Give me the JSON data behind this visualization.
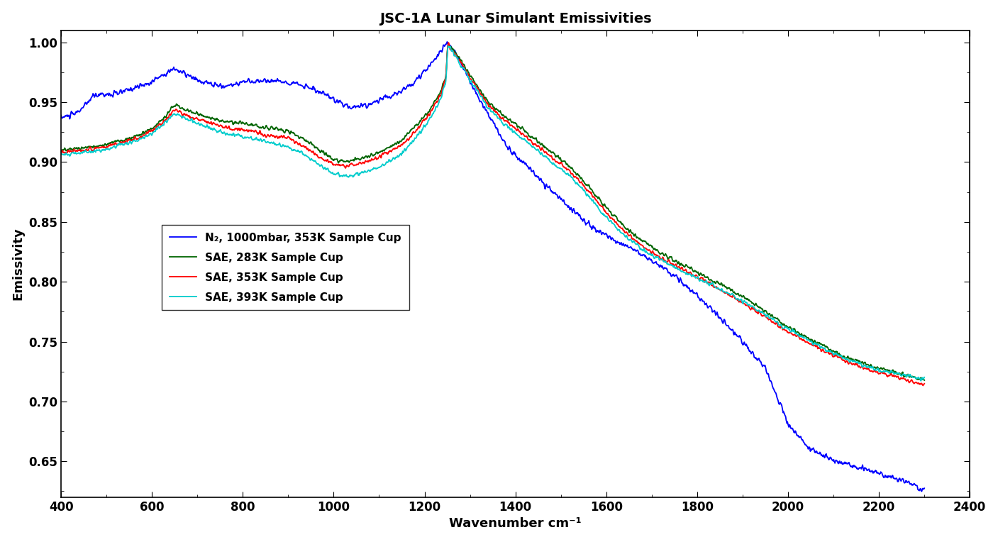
{
  "title": "JSC-1A Lunar Simulant Emissivities",
  "xlabel": "Wavenumber cm⁻¹",
  "ylabel": "Emissivity",
  "xlim": [
    400,
    2400
  ],
  "ylim": [
    0.62,
    1.01
  ],
  "yticks": [
    0.65,
    0.7,
    0.75,
    0.8,
    0.85,
    0.9,
    0.95,
    1.0
  ],
  "xticks": [
    400,
    600,
    800,
    1000,
    1200,
    1400,
    1600,
    1800,
    2000,
    2200,
    2400
  ],
  "legend_labels": [
    "N₂, 1000mbar, 353K Sample Cup",
    "SAE, 283K Sample Cup",
    "SAE, 353K Sample Cup",
    "SAE, 393K Sample Cup"
  ],
  "line_colors": [
    "#0000ff",
    "#006400",
    "#ff0000",
    "#00cccc"
  ],
  "background_color": "#ffffff",
  "title_fontsize": 14,
  "axis_label_fontsize": 13,
  "tick_fontsize": 12,
  "legend_fontsize": 11
}
